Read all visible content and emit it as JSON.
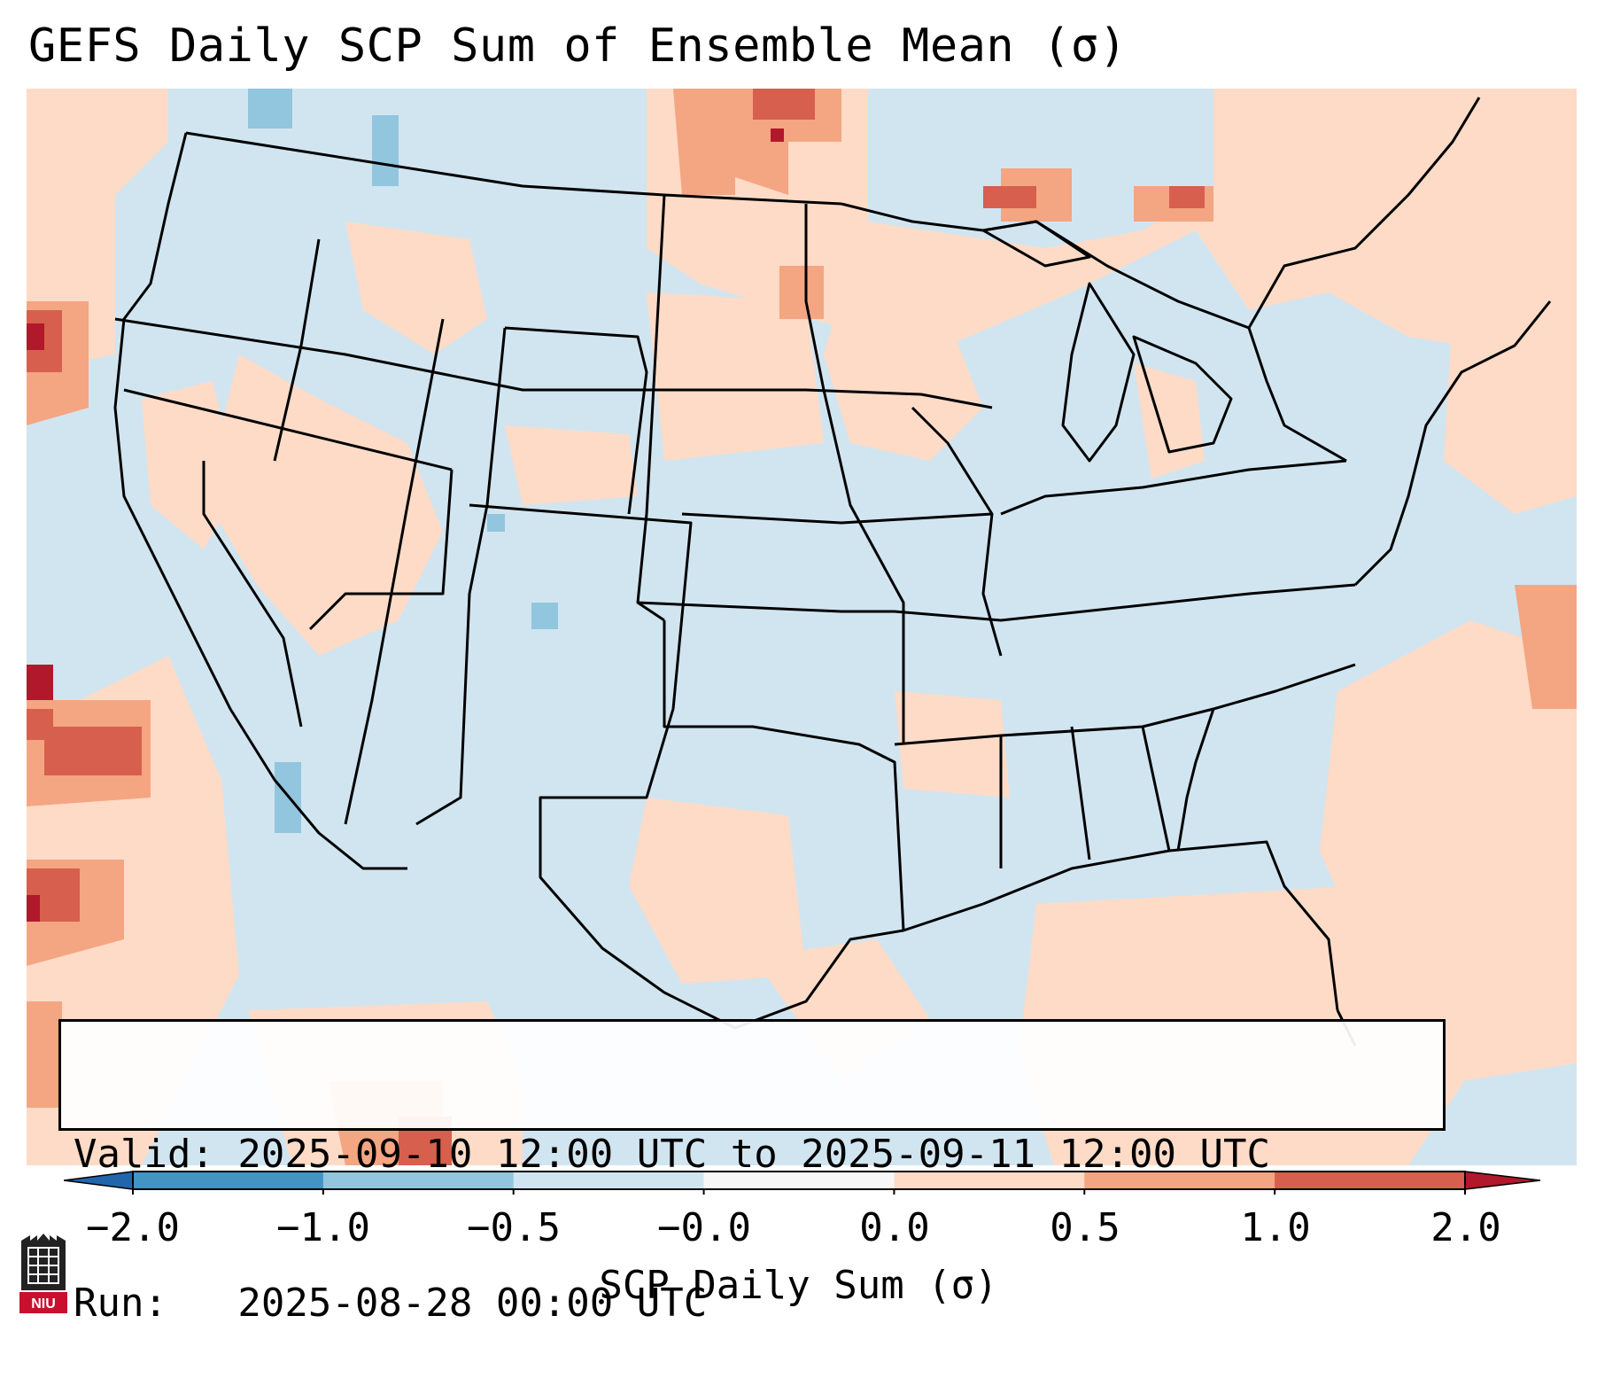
{
  "title": "GEFS Daily SCP Sum of Ensemble Mean (σ)",
  "valid_box": {
    "valid_line": "Valid: 2025-09-10 12:00 UTC to 2025-09-11 12:00 UTC",
    "run_line": "Run:   2025-08-28 00:00 UTC"
  },
  "colorbar": {
    "label": "SCP Daily Sum (σ)",
    "ticks": [
      "−2.0",
      "−1.0",
      "−0.5",
      "−0.0",
      "0.0",
      "0.5",
      "1.0",
      "2.0"
    ],
    "bins": [
      {
        "from": -2.0,
        "to": -1.0,
        "color": "#4393c3"
      },
      {
        "from": -1.0,
        "to": -0.5,
        "color": "#92c5de"
      },
      {
        "from": -0.5,
        "to": -0.0,
        "color": "#d1e5f0"
      },
      {
        "from": -0.0,
        "to": 0.0,
        "color": "#f7f7f7"
      },
      {
        "from": 0.0,
        "to": 0.5,
        "color": "#fddbc7"
      },
      {
        "from": 0.5,
        "to": 1.0,
        "color": "#f4a582"
      },
      {
        "from": 1.0,
        "to": 2.0,
        "color": "#d6604d"
      }
    ],
    "under_color": "#2166ac",
    "over_color": "#b2182b",
    "extend": "both"
  },
  "logo": {
    "text": "NIU",
    "color": "#c8102e"
  },
  "colors": {
    "background_field": "#d1e5f0",
    "positive_light": "#fddbc7",
    "positive_mid": "#f4a582",
    "positive_strong": "#d6604d",
    "positive_max": "#b2182b",
    "negative_light": "#92c5de",
    "border": "#000000"
  }
}
